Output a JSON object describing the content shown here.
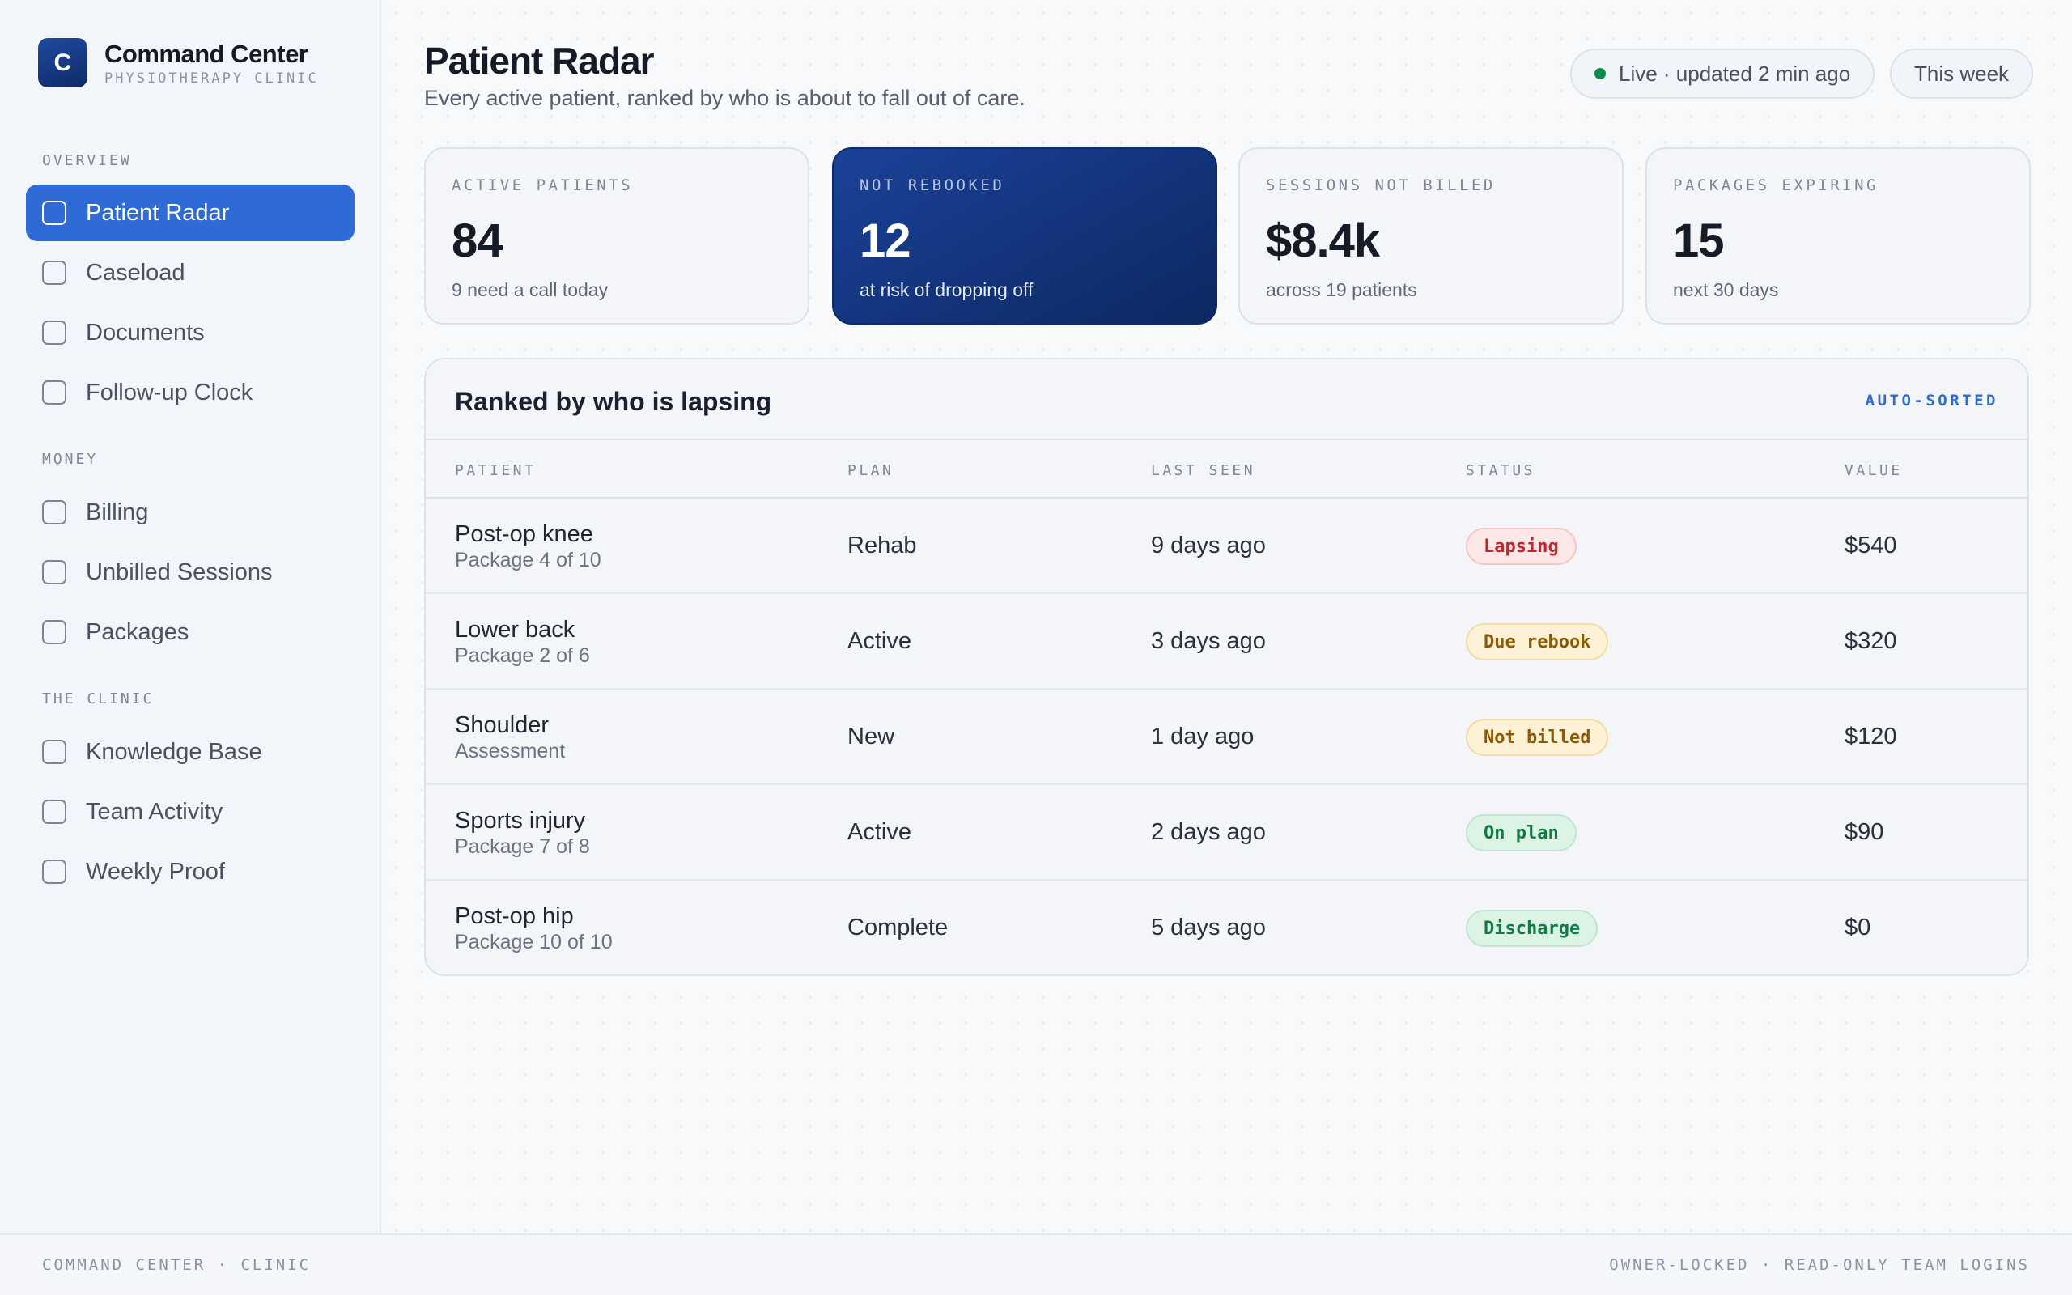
{
  "brand": {
    "logo_letter": "C",
    "title": "Command Center",
    "subtitle": "PHYSIOTHERAPY CLINIC"
  },
  "sidebar": {
    "sections": [
      {
        "label": "OVERVIEW",
        "items": [
          {
            "label": "Patient Radar",
            "active": true
          },
          {
            "label": "Caseload"
          },
          {
            "label": "Documents"
          },
          {
            "label": "Follow-up Clock"
          }
        ]
      },
      {
        "label": "MONEY",
        "items": [
          {
            "label": "Billing"
          },
          {
            "label": "Unbilled Sessions"
          },
          {
            "label": "Packages"
          }
        ]
      },
      {
        "label": "THE CLINIC",
        "items": [
          {
            "label": "Knowledge Base"
          },
          {
            "label": "Team Activity"
          },
          {
            "label": "Weekly Proof"
          }
        ]
      }
    ]
  },
  "header": {
    "title": "Patient Radar",
    "subtitle": "Every active patient, ranked by who is about to fall out of care.",
    "live_label": "Live · updated 2 min ago",
    "range_label": "This week"
  },
  "stats": [
    {
      "label": "ACTIVE PATIENTS",
      "value": "84",
      "note": "9 need a call today"
    },
    {
      "label": "NOT REBOOKED",
      "value": "12",
      "note": "at risk of dropping off"
    },
    {
      "label": "SESSIONS NOT BILLED",
      "value": "$8.4k",
      "note": "across 19 patients"
    },
    {
      "label": "PACKAGES EXPIRING",
      "value": "15",
      "note": "next 30 days"
    }
  ],
  "table": {
    "title": "Ranked by who is lapsing",
    "tag": "AUTO-SORTED",
    "columns": {
      "patient": "PATIENT",
      "plan": "PLAN",
      "last_seen": "LAST SEEN",
      "status": "STATUS",
      "value": "VALUE"
    },
    "rows": [
      {
        "name": "Post-op knee",
        "detail": "Package 4 of 10",
        "plan": "Rehab",
        "last_seen": "9 days ago",
        "status": "Lapsing",
        "value": "$540"
      },
      {
        "name": "Lower back",
        "detail": "Package 2 of 6",
        "plan": "Active",
        "last_seen": "3 days ago",
        "status": "Due rebook",
        "value": "$320"
      },
      {
        "name": "Shoulder",
        "detail": "Assessment",
        "plan": "New",
        "last_seen": "1 day ago",
        "status": "Not billed",
        "value": "$120"
      },
      {
        "name": "Sports injury",
        "detail": "Package 7 of 8",
        "plan": "Active",
        "last_seen": "2 days ago",
        "status": "On plan",
        "value": "$90"
      },
      {
        "name": "Post-op hip",
        "detail": "Package 10 of 10",
        "plan": "Complete",
        "last_seen": "5 days ago",
        "status": "Discharge",
        "value": "$0"
      }
    ]
  },
  "footer": {
    "left": "COMMAND CENTER · CLINIC",
    "right": "OWNER-LOCKED · READ-ONLY TEAM LOGINS"
  },
  "colors": {
    "accent": "#2e6bd6",
    "dark_card": "#0c2862",
    "live": "#0f8a4f",
    "lapsing": "#c0262d",
    "due": "#8a5a06",
    "ok": "#147a45"
  }
}
